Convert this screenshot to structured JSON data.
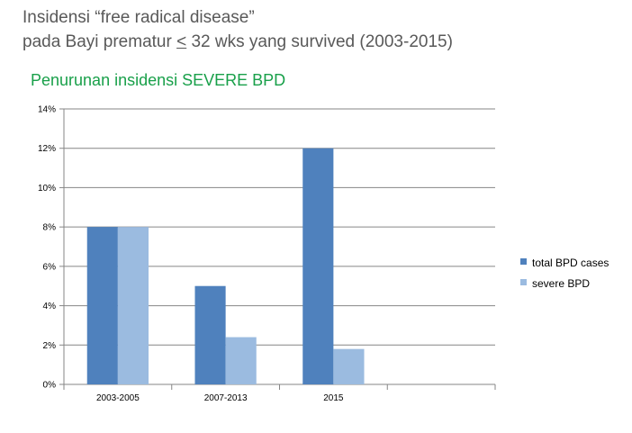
{
  "title": {
    "line1": "Insidensi “free radical disease”",
    "line2_pre": "pada Bayi prematur ",
    "line2_u": "<",
    "line2_post": " 32 wks yang survived  (2003-2015)"
  },
  "chart_data": {
    "type": "bar",
    "title": "Penurunan insidensi SEVERE BPD",
    "categories": [
      "2003-2005",
      "2007-2013",
      "2015",
      ""
    ],
    "series": [
      {
        "name": "total BPD cases",
        "color": "#4f81bd",
        "values": [
          8,
          5,
          12,
          null
        ]
      },
      {
        "name": "severe BPD",
        "color": "#9bbbe0",
        "values": [
          8,
          2.4,
          1.8,
          null
        ]
      }
    ],
    "ylim": [
      0,
      14
    ],
    "yticks": [
      "0%",
      "2%",
      "4%",
      "6%",
      "8%",
      "10%",
      "12%",
      "14%"
    ],
    "ytick_values": [
      0,
      2,
      4,
      6,
      8,
      10,
      12,
      14
    ],
    "grid": true,
    "legend_position": "right",
    "xlabel": "",
    "ylabel": ""
  }
}
